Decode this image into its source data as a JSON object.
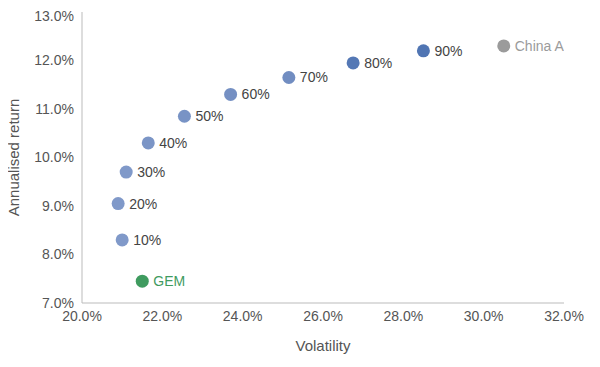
{
  "chart_data": {
    "type": "scatter",
    "x_label": "Volatility",
    "y_label": "Annualised return",
    "xlim": [
      20,
      32
    ],
    "xticks": [
      {
        "value": 20,
        "label": "20.0%"
      },
      {
        "value": 22,
        "label": "22.0%"
      },
      {
        "value": 24,
        "label": "24.0%"
      },
      {
        "value": 26,
        "label": "26.0%"
      },
      {
        "value": 28,
        "label": "28.0%"
      },
      {
        "value": 30,
        "label": "30.0%"
      },
      {
        "value": 32,
        "label": "32.0%"
      }
    ],
    "ylim": [
      7,
      13
    ],
    "yticks": [
      {
        "value": 7,
        "label": "7.0%"
      },
      {
        "value": 8,
        "label": "8.0%"
      },
      {
        "value": 9,
        "label": "9.0%"
      },
      {
        "value": 10,
        "label": "10.0%"
      },
      {
        "value": 11,
        "label": "11.0%"
      },
      {
        "value": 12,
        "label": "12.0%"
      },
      {
        "value": 13,
        "label": "13.0%"
      }
    ],
    "grid": false,
    "series": [
      {
        "name": "GEM",
        "color": "#3f9b5f",
        "x": [
          21.5
        ],
        "values": [
          7.45
        ],
        "labels": [
          "GEM"
        ]
      },
      {
        "colors": [
          "#8099c9",
          "#8099c9",
          "#8099c9",
          "#7b95c6",
          "#7893c5",
          "#7590c3",
          "#718dc1",
          "#5478b5",
          "#5075b3"
        ],
        "x": [
          21.0,
          20.9,
          21.1,
          21.65,
          22.55,
          23.7,
          25.15,
          26.75,
          28.5
        ],
        "values": [
          8.3,
          9.05,
          9.7,
          10.3,
          10.85,
          11.3,
          11.65,
          11.95,
          12.2
        ],
        "labels": [
          "10%",
          "20%",
          "30%",
          "40%",
          "50%",
          "60%",
          "70%",
          "80%",
          "90%"
        ]
      },
      {
        "name": "China A",
        "color": "#9b9b9b",
        "x": [
          30.5
        ],
        "values": [
          12.3
        ],
        "labels": [
          "China A"
        ]
      }
    ]
  }
}
